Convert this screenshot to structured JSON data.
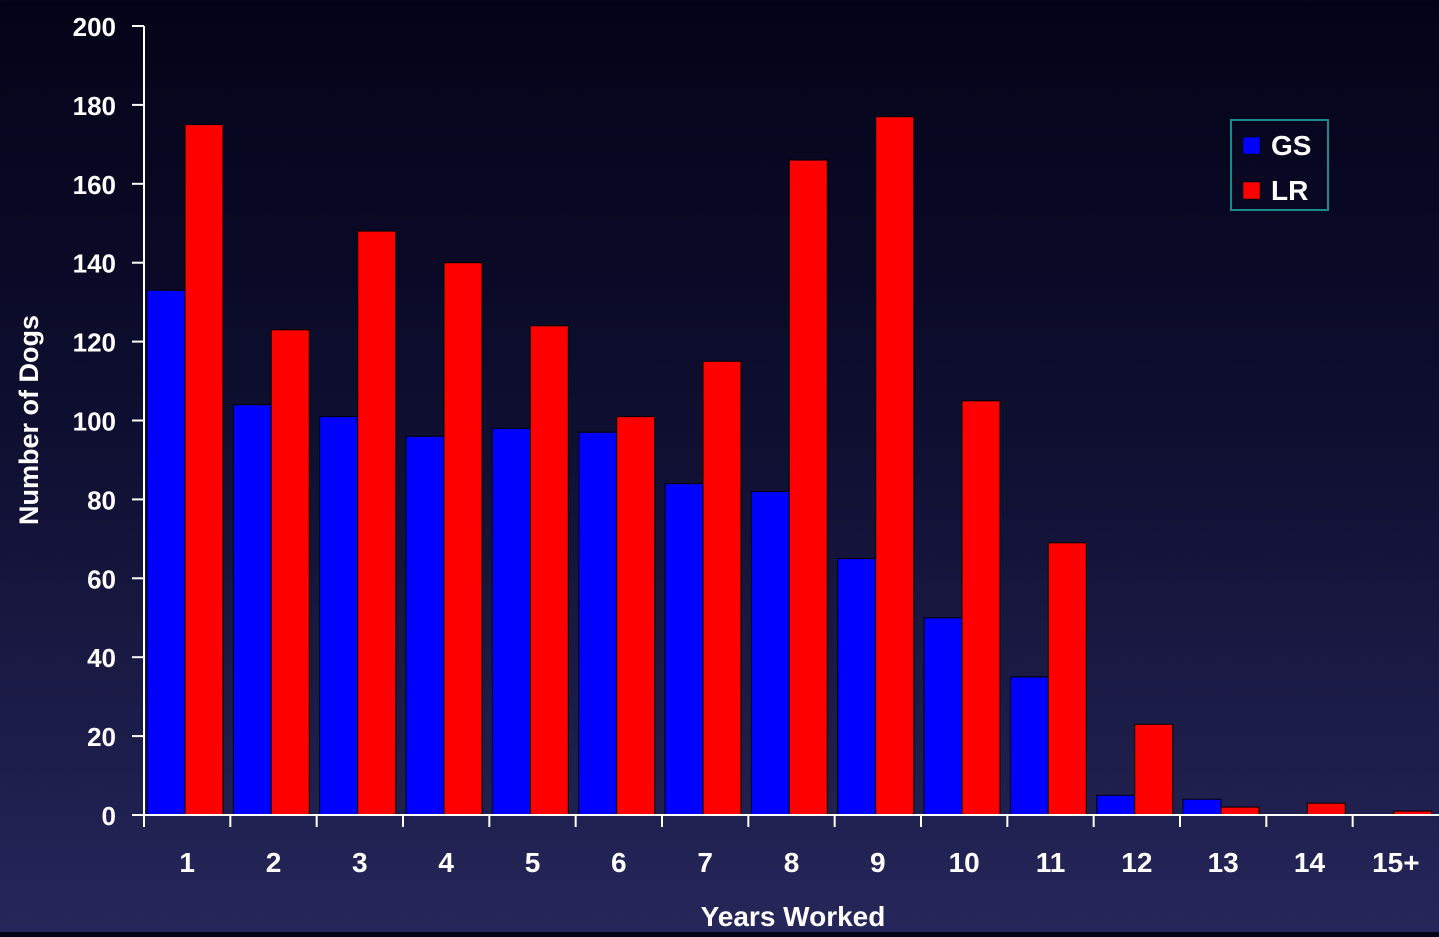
{
  "chart_data": {
    "type": "bar",
    "title": "",
    "xlabel": "Years Worked",
    "ylabel": "Number of Dogs",
    "ylim": [
      0,
      200
    ],
    "yticks": [
      0,
      20,
      40,
      60,
      80,
      100,
      120,
      140,
      160,
      180,
      200
    ],
    "categories": [
      "1",
      "2",
      "3",
      "4",
      "5",
      "6",
      "7",
      "8",
      "9",
      "10",
      "11",
      "12",
      "13",
      "14",
      "15+"
    ],
    "series": [
      {
        "name": "GS",
        "color": "#0000ff",
        "values": [
          133,
          104,
          101,
          96,
          98,
          97,
          84,
          82,
          65,
          50,
          35,
          5,
          4,
          0,
          0
        ]
      },
      {
        "name": "LR",
        "color": "#ff0000",
        "values": [
          175,
          123,
          148,
          140,
          124,
          101,
          115,
          166,
          177,
          105,
          69,
          23,
          2,
          3,
          1
        ]
      }
    ],
    "grid": false,
    "legend_position": "top-right",
    "legend_border_color": "#1a8a8a"
  }
}
